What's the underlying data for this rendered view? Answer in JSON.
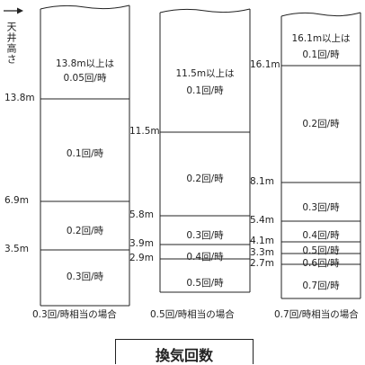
{
  "axis_label": "天井高さ",
  "legend": "換気回数",
  "columns": [
    {
      "title": "0.3回/時相当の場合",
      "ticks": [
        "13.8m",
        "6.9m",
        "3.5m"
      ],
      "bands": [
        {
          "text": "13.8m以上は\n0.05回/時"
        },
        {
          "text": "0.1回/時"
        },
        {
          "text": "0.2回/時"
        },
        {
          "text": "0.3回/時"
        }
      ]
    },
    {
      "title": "0.5回/時相当の場合",
      "ticks": [
        "11.5m",
        "5.8m",
        "3.9m",
        "2.9m"
      ],
      "bands": [
        {
          "text": "11.5m以上は\n0.1回/時"
        },
        {
          "text": "0.2回/時"
        },
        {
          "text": "0.3回/時"
        },
        {
          "text": "0.4回/時"
        },
        {
          "text": "0.5回/時"
        }
      ]
    },
    {
      "title": "0.7回/時相当の場合",
      "ticks": [
        "16.1m",
        "8.1m",
        "5.4m",
        "4.1m",
        "3.3m",
        "2.7m"
      ],
      "bands": [
        {
          "text": "16.1m以上は\n0.1回/時"
        },
        {
          "text": "0.2回/時"
        },
        {
          "text": "0.3回/時"
        },
        {
          "text": "0.4回/時"
        },
        {
          "text": "0.5回/時"
        },
        {
          "text": "0.6回/時"
        },
        {
          "text": "0.7回/時"
        }
      ]
    }
  ]
}
